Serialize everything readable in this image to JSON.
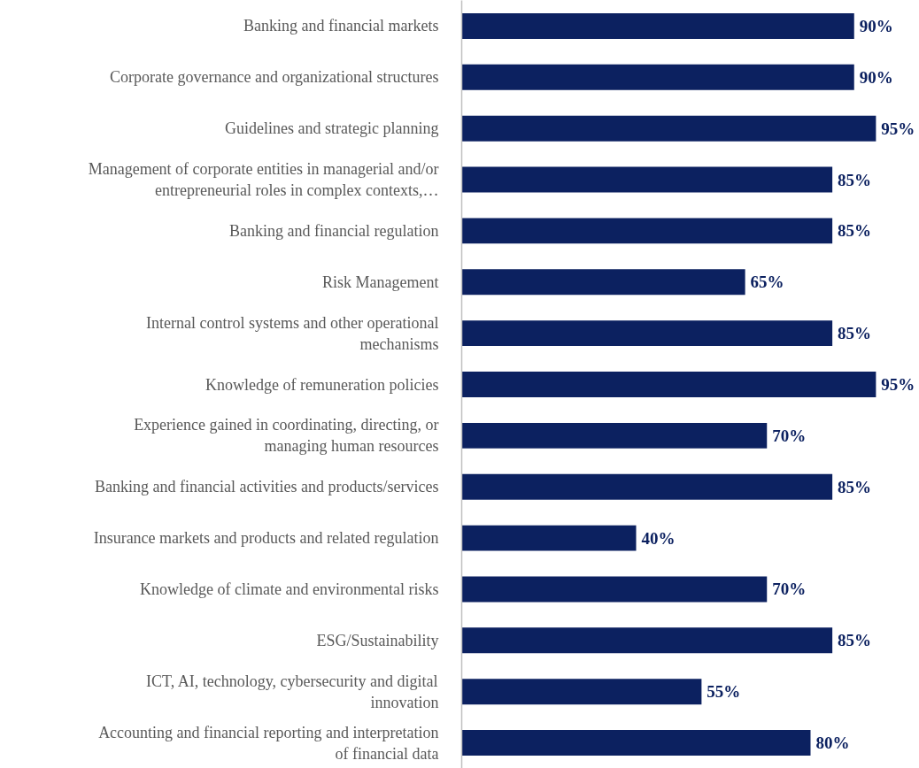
{
  "chart_data": {
    "type": "bar",
    "orientation": "horizontal",
    "categories": [
      "Banking and financial markets",
      "Corporate governance and organizational structures",
      "Guidelines and strategic planning",
      "Management of corporate entities in managerial and/or entrepreneurial roles in complex contexts,…",
      "Banking and financial regulation",
      "Risk Management",
      "Internal control systems and other operational mechanisms",
      "Knowledge of remuneration policies",
      "Experience gained in coordinating, directing, or managing human resources",
      "Banking and financial activities and products/services",
      "Insurance markets and products and related regulation",
      "Knowledge of climate and environmental risks",
      "ESG/Sustainability",
      "ICT, AI, technology, cybersecurity and digital innovation",
      "Accounting and financial reporting and interpretation of financial data"
    ],
    "values": [
      90,
      90,
      95,
      85,
      85,
      65,
      85,
      95,
      70,
      85,
      40,
      70,
      85,
      55,
      80
    ],
    "value_labels": [
      "90%",
      "90%",
      "95%",
      "85%",
      "85%",
      "65%",
      "85%",
      "95%",
      "70%",
      "85%",
      "40%",
      "70%",
      "85%",
      "55%",
      "80%"
    ],
    "color": "#0c2160",
    "grid": false
  }
}
